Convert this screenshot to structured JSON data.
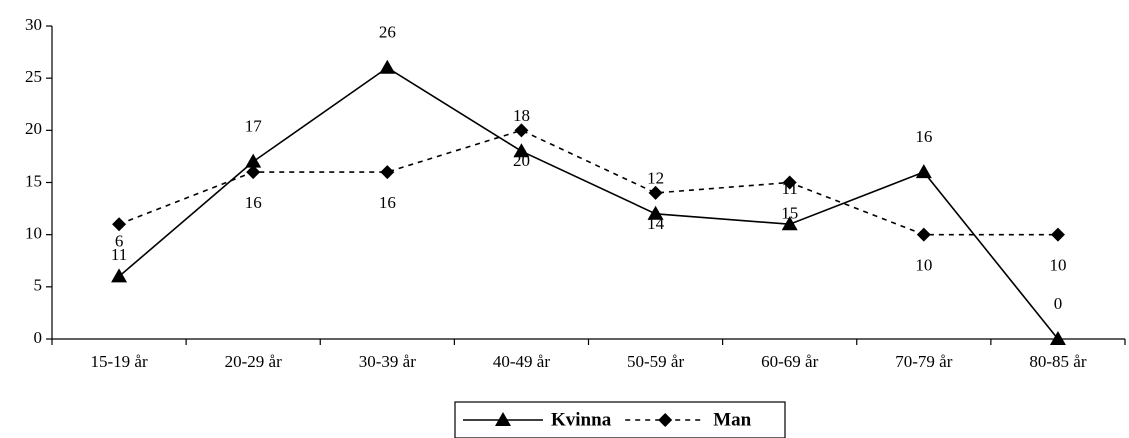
{
  "chart_data": {
    "type": "line",
    "categories": [
      "15-19 år",
      "20-29 år",
      "30-39 år",
      "40-49 år",
      "50-59 år",
      "60-69 år",
      "70-79 år",
      "80-85 år"
    ],
    "series": [
      {
        "name": "Kvinna",
        "color": "#000000",
        "marker": "triangle",
        "dash": false,
        "values": [
          6,
          17,
          26,
          18,
          12,
          11,
          16,
          0
        ]
      },
      {
        "name": "Man",
        "color": "#000000",
        "marker": "diamond",
        "dash": true,
        "values": [
          11,
          16,
          16,
          20,
          14,
          15,
          10,
          10
        ]
      }
    ],
    "ylim": [
      0,
      30
    ],
    "yticks": [
      0,
      5,
      10,
      15,
      20,
      25,
      30
    ],
    "grid": false,
    "legend": "bottom"
  }
}
